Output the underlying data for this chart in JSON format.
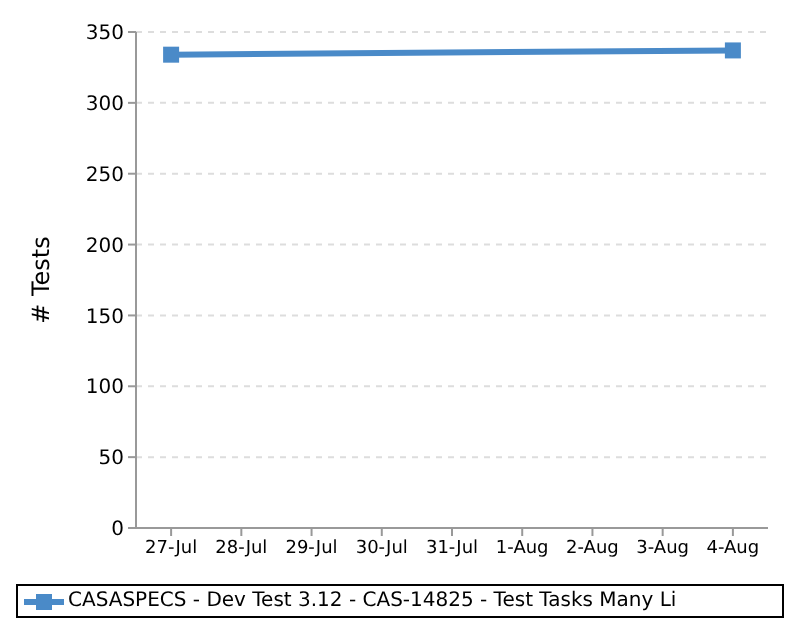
{
  "chart_data": {
    "type": "line",
    "ylabel": "# Tests",
    "categories": [
      "27-Jul",
      "28-Jul",
      "29-Jul",
      "30-Jul",
      "31-Jul",
      "1-Aug",
      "2-Aug",
      "3-Aug",
      "4-Aug"
    ],
    "series": [
      {
        "name": "CASASPECS - Dev Test 3.12 - CAS-14825 - Test Tasks Many Li",
        "color": "#4a8ac8",
        "x": [
          "27-Jul",
          "4-Aug"
        ],
        "values": [
          334,
          337
        ]
      }
    ],
    "ylim": [
      0,
      350
    ],
    "yticks": [
      0,
      50,
      100,
      150,
      200,
      250,
      300,
      350
    ],
    "grid": "y",
    "legend": "bottom",
    "marker": "square",
    "line_style": "solid"
  }
}
